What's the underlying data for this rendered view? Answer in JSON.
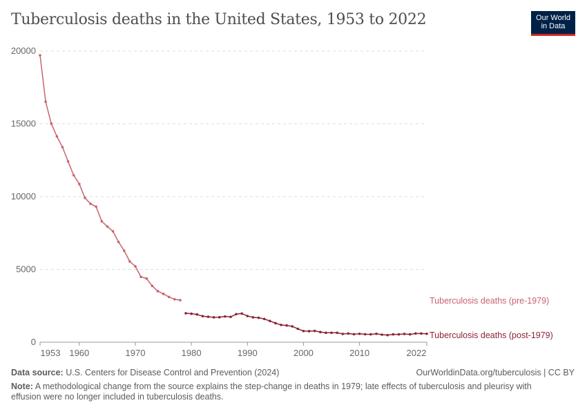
{
  "title": "Tuberculosis deaths in the United States, 1953 to 2022",
  "logo": {
    "line1": "Our World",
    "line2": "in Data"
  },
  "footer": {
    "source_label": "Data source:",
    "source": "U.S. Centers for Disease Control and Prevention (2024)",
    "credit": "OurWorldinData.org/tuberculosis | CC BY",
    "note_label": "Note:",
    "note": "A methodological change from the source explains the step-change in deaths in 1979; late effects of tuberculosis and pleurisy with effusion were no longer included in tuberculosis deaths."
  },
  "chart_data": {
    "type": "line",
    "title": "Tuberculosis deaths in the United States, 1953 to 2022",
    "xlim": [
      1953,
      2022
    ],
    "ylim": [
      0,
      20000
    ],
    "x_ticks": [
      1953,
      1960,
      1970,
      1980,
      1990,
      2000,
      2010,
      2022
    ],
    "y_ticks": [
      0,
      5000,
      10000,
      15000,
      20000
    ],
    "grid": "horizontal dashed",
    "legend": "right (line-end labels)",
    "series": [
      {
        "name": "Tuberculosis deaths (pre-1979)",
        "color": "#c9636e",
        "x": [
          1953,
          1954,
          1955,
          1956,
          1957,
          1958,
          1959,
          1960,
          1961,
          1962,
          1963,
          1964,
          1965,
          1966,
          1967,
          1968,
          1969,
          1970,
          1971,
          1972,
          1973,
          1974,
          1975,
          1976,
          1977,
          1978
        ],
        "y": [
          19710,
          16520,
          15020,
          14140,
          13400,
          12420,
          11470,
          10870,
          9920,
          9510,
          9310,
          8310,
          7950,
          7620,
          6890,
          6290,
          5550,
          5210,
          4490,
          4380,
          3870,
          3510,
          3320,
          3110,
          2950,
          2890
        ]
      },
      {
        "name": "Tuberculosis deaths (post-1979)",
        "color": "#8c2335",
        "x": [
          1979,
          1980,
          1981,
          1982,
          1983,
          1984,
          1985,
          1986,
          1987,
          1988,
          1989,
          1990,
          1991,
          1992,
          1993,
          1994,
          1995,
          1996,
          1997,
          1998,
          1999,
          2000,
          2001,
          2002,
          2003,
          2004,
          2005,
          2006,
          2007,
          2008,
          2009,
          2010,
          2011,
          2012,
          2013,
          2014,
          2015,
          2016,
          2017,
          2018,
          2019,
          2020,
          2021,
          2022
        ],
        "y": [
          1990,
          1960,
          1910,
          1790,
          1750,
          1710,
          1720,
          1770,
          1740,
          1930,
          1970,
          1800,
          1710,
          1680,
          1600,
          1460,
          1310,
          1190,
          1150,
          1090,
          920,
          770,
          760,
          780,
          700,
          650,
          650,
          650,
          570,
          600,
          550,
          580,
          550,
          540,
          580,
          520,
          490,
          540,
          540,
          570,
          540,
          600,
          600,
          580
        ]
      }
    ]
  }
}
